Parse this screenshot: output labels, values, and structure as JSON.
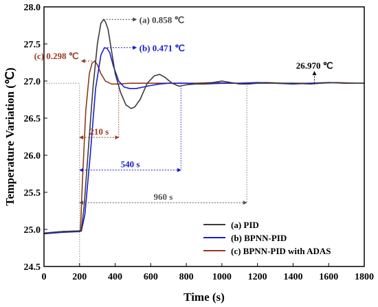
{
  "chart_data": {
    "type": "line",
    "xlabel": "Time (s)",
    "ylabel": "Temperature Variation (℃)",
    "xlim": [
      0,
      1800
    ],
    "ylim": [
      24.5,
      28.0
    ],
    "xticks": [
      0,
      200,
      400,
      600,
      800,
      1000,
      1200,
      1400,
      1600,
      1800
    ],
    "yticks": [
      24.5,
      25.0,
      25.5,
      26.0,
      26.5,
      27.0,
      27.5,
      28.0
    ],
    "xtick_labels": [
      "0",
      "200",
      "400",
      "600",
      "800",
      "1000",
      "1200",
      "1400",
      "1600",
      "1800"
    ],
    "ytick_labels": [
      "24.5",
      "25.0",
      "25.5",
      "26.0",
      "26.5",
      "27.0",
      "27.5",
      "28.0"
    ],
    "grid": false,
    "legend_position": "bottom-right",
    "series": [
      {
        "name": "(a) PID",
        "color": "#3a3a3a",
        "x": [
          0,
          100,
          200,
          210,
          225,
          250,
          275,
          300,
          320,
          335,
          345,
          360,
          380,
          400,
          430,
          460,
          490,
          510,
          540,
          580,
          620,
          650,
          680,
          720,
          760,
          800,
          850,
          900,
          950,
          1000,
          1050,
          1100,
          1150,
          1200,
          1300,
          1400,
          1500,
          1600,
          1700,
          1800
        ],
        "y": [
          24.95,
          24.97,
          24.98,
          24.99,
          25.3,
          26.1,
          26.9,
          27.5,
          27.78,
          27.83,
          27.8,
          27.7,
          27.4,
          27.1,
          26.85,
          26.68,
          26.63,
          26.65,
          26.75,
          26.97,
          27.07,
          27.09,
          27.05,
          26.97,
          26.93,
          26.95,
          26.96,
          26.96,
          26.98,
          27.0,
          26.98,
          26.96,
          26.96,
          26.97,
          26.97,
          26.97,
          26.96,
          26.98,
          26.97,
          26.97
        ]
      },
      {
        "name": "(b) BPNN-PID",
        "color": "#1a1ad4",
        "x": [
          0,
          100,
          200,
          210,
          230,
          260,
          290,
          320,
          340,
          355,
          370,
          390,
          420,
          450,
          480,
          520,
          560,
          600,
          650,
          700,
          760,
          800,
          900,
          1000,
          1100,
          1200,
          1300,
          1400,
          1500,
          1600,
          1700,
          1800
        ],
        "y": [
          24.94,
          24.96,
          24.97,
          24.98,
          25.2,
          26.0,
          26.9,
          27.35,
          27.45,
          27.44,
          27.38,
          27.2,
          27.0,
          26.92,
          26.9,
          26.9,
          26.92,
          26.94,
          26.96,
          26.97,
          26.97,
          26.97,
          26.96,
          26.97,
          26.97,
          26.98,
          26.97,
          26.96,
          26.97,
          26.98,
          26.97,
          26.97
        ]
      },
      {
        "name": "(c) BPNN-PID with ADAS",
        "color": "#8b3a1a",
        "x": [
          0,
          100,
          200,
          205,
          215,
          235,
          255,
          270,
          285,
          300,
          320,
          345,
          380,
          420,
          480,
          560,
          650,
          750,
          850,
          950,
          1050,
          1150,
          1250,
          1350,
          1450,
          1550,
          1650,
          1750,
          1800
        ],
        "y": [
          24.95,
          24.97,
          24.98,
          24.99,
          25.6,
          26.6,
          27.1,
          27.24,
          27.27,
          27.22,
          27.1,
          27.0,
          26.96,
          26.96,
          26.97,
          26.97,
          26.97,
          26.97,
          26.97,
          26.98,
          26.97,
          26.97,
          26.98,
          26.97,
          26.97,
          26.97,
          26.98,
          26.97,
          26.97
        ]
      }
    ],
    "annotations": {
      "overshoot_pid": {
        "label": "(a) 0.858 ℃",
        "color": "#444444",
        "x_from": 335,
        "x_to": 520,
        "y": 27.83
      },
      "overshoot_bpnn": {
        "label": "(b) 0.471 ℃",
        "color": "#1a1ad4",
        "x_from": 355,
        "x_to": 520,
        "y": 27.45
      },
      "overshoot_adas": {
        "label": "(c) 0.298 ℃",
        "color": "#9a3a1e",
        "x_from": 270,
        "x_to": 210,
        "y": 27.27
      },
      "steady_state": {
        "label": "26.970 ℃",
        "color": "#000000",
        "x": 1520,
        "y_from": 26.97,
        "y_to": 27.13
      },
      "settle_adas": {
        "label": "210 s",
        "color": "#9a3a1e",
        "x_from": 200,
        "x_to": 420,
        "y": 26.24,
        "x_end": 420
      },
      "settle_bpnn": {
        "label": "540 s",
        "color": "#1a1ad4",
        "x_from": 200,
        "x_to": 770,
        "y": 25.8,
        "x_end": 770
      },
      "settle_pid": {
        "label": "960 s",
        "color": "#555555",
        "x_from": 200,
        "x_to": 1140,
        "y": 25.36,
        "x_end": 1140
      },
      "ref_start_x": 200,
      "ref_level": 26.97
    }
  }
}
